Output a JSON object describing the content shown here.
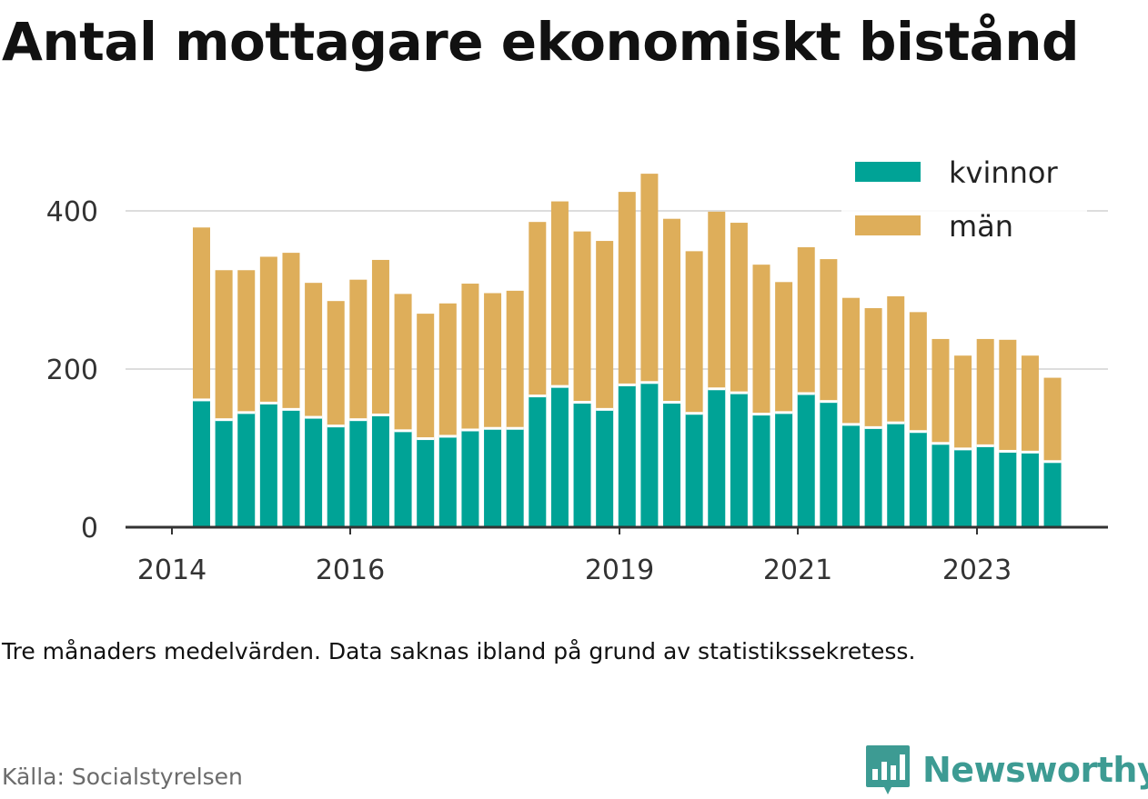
{
  "title": "Antal mottagare ekonomiskt bistånd",
  "note": "Tre månaders medelvärden. Data saknas ibland på grund av statistikssekretess.",
  "source": "Källa: Socialstyrelsen",
  "brand": {
    "name": "Newsworthy",
    "icon": "newsworthy-logo-icon"
  },
  "colors": {
    "kvinnor": "#00a396",
    "man": "#deae5a",
    "grid": "#dddddd",
    "axis": "#333333"
  },
  "chart_data": {
    "type": "bar",
    "stacked": true,
    "ylim": [
      0,
      450
    ],
    "yticks": [
      0,
      200,
      400
    ],
    "xticks": [
      "2014",
      "2016",
      "2019",
      "2021",
      "2023"
    ],
    "grid": true,
    "legend_position": "top-right",
    "series": [
      {
        "name": "kvinnor",
        "values": [
          161,
          136,
          145,
          157,
          149,
          139,
          128,
          136,
          142,
          122,
          112,
          115,
          123,
          125,
          125,
          166,
          178,
          158,
          149,
          180,
          183,
          158,
          144,
          175,
          170,
          143,
          145,
          169,
          159,
          130,
          126,
          132,
          121,
          106,
          99,
          103,
          96,
          95,
          83
        ]
      },
      {
        "name": "män",
        "values": [
          218,
          189,
          180,
          185,
          198,
          170,
          158,
          177,
          196,
          173,
          158,
          168,
          185,
          171,
          174,
          220,
          234,
          216,
          213,
          244,
          264,
          232,
          205,
          224,
          215,
          189,
          165,
          185,
          180,
          160,
          151,
          160,
          151,
          132,
          118,
          135,
          141,
          122,
          106
        ]
      }
    ]
  }
}
